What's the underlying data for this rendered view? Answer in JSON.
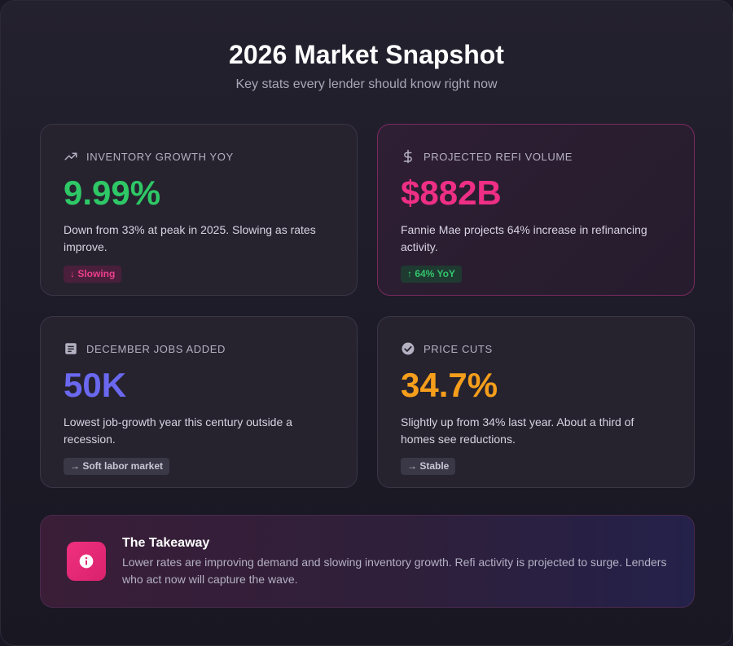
{
  "header": {
    "title": "2026 Market Snapshot",
    "subtitle": "Key stats every lender should know right now"
  },
  "cards": [
    {
      "icon": "trending-up-icon",
      "label": "INVENTORY GROWTH YOY",
      "value": "9.99%",
      "value_color": "#2ec866",
      "description": "Down from 33% at peak in 2025. Slowing as rates improve.",
      "badge": "↓ Slowing",
      "badge_type": "down"
    },
    {
      "icon": "dollar-icon",
      "label": "PROJECTED REFI VOLUME",
      "value": "$882B",
      "value_color": "#ee2f85",
      "description": "Fannie Mae projects 64% increase in refinancing activity.",
      "badge": "↑ 64% YoY",
      "badge_type": "up"
    },
    {
      "icon": "document-icon",
      "label": "DECEMBER JOBS ADDED",
      "value": "50K",
      "value_color": "#6b68f0",
      "description": "Lowest job-growth year this century outside a recession.",
      "badge": "→ Soft labor market",
      "badge_type": "neutral"
    },
    {
      "icon": "check-circle-icon",
      "label": "PRICE CUTS",
      "value": "34.7%",
      "value_color": "#f59e1b",
      "description": "Slightly up from 34% last year. About a third of homes see reductions.",
      "badge": "→ Stable",
      "badge_type": "neutral"
    }
  ],
  "takeaway": {
    "icon": "info-icon",
    "title": "The Takeaway",
    "body": "Lower rates are improving demand and slowing inventory growth. Refi activity is projected to surge. Lenders who act now will capture the wave."
  }
}
